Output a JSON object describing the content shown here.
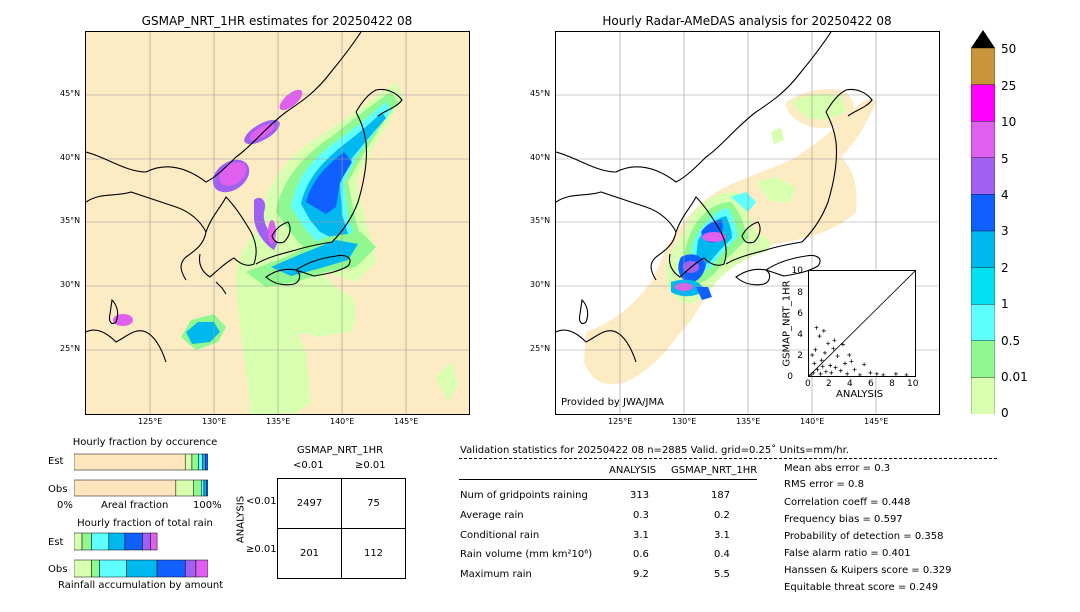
{
  "left_map": {
    "title": "GSMAP_NRT_1HR estimates for 20250422 08",
    "lat_labels": [
      "45°N",
      "40°N",
      "35°N",
      "30°N",
      "25°N"
    ],
    "lon_labels": [
      "125°E",
      "130°E",
      "135°E",
      "140°E",
      "145°E"
    ]
  },
  "right_map": {
    "title": "Hourly Radar-AMeDAS analysis for 20250422 08",
    "lat_labels": [
      "45°N",
      "40°N",
      "35°N",
      "30°N",
      "25°N"
    ],
    "lon_labels": [
      "125°E",
      "130°E",
      "135°E",
      "140°E",
      "145°E"
    ],
    "credit": "Provided by JWA/JMA"
  },
  "colorbar": {
    "labels": [
      "50",
      "25",
      "10",
      "5",
      "4",
      "3",
      "2",
      "1",
      "0.5",
      "0.01",
      "0"
    ],
    "colors": [
      "#c8953a",
      "#ff00ff",
      "#df5fef",
      "#a060f0",
      "#1060ff",
      "#00b8f0",
      "#00e0f0",
      "#60ffff",
      "#90f890",
      "#d8ffb0",
      "#fde6be"
    ]
  },
  "scatter": {
    "xlabel": "ANALYSIS",
    "ylabel": "GSMAP_NRT_1HR",
    "ticks": [
      "0",
      "2",
      "4",
      "6",
      "8",
      "10"
    ]
  },
  "fraction_occurrence": {
    "title": "Hourly fraction by occurence",
    "rows": [
      "Est",
      "Obs"
    ],
    "axis_left": "0%",
    "axis_mid": "Areal fraction",
    "axis_right": "100%"
  },
  "fraction_total": {
    "title": "Hourly fraction of total rain",
    "rows": [
      "Est",
      "Obs"
    ],
    "footer": "Rainfall accumulation by amount"
  },
  "contingency": {
    "title": "GSMAP_NRT_1HR",
    "col_headers": [
      "<0.01",
      "≥0.01"
    ],
    "row_axis": "ANALYSIS",
    "row_headers": [
      "<0.01",
      "≥0.01"
    ],
    "cells": [
      [
        "2497",
        "75"
      ],
      [
        "201",
        "112"
      ]
    ]
  },
  "validation": {
    "header": "Validation statistics for 20250422 08  n=2885 Valid. grid=0.25˚ Units=mm/hr.",
    "col_analysis": "ANALYSIS",
    "col_gsmap": "GSMAP_NRT_1HR",
    "rows": [
      {
        "label": "Num of gridpoints raining",
        "a": "313",
        "g": "187"
      },
      {
        "label": "Average rain",
        "a": "0.3",
        "g": "0.2"
      },
      {
        "label": "Conditional rain",
        "a": "3.1",
        "g": "3.1"
      },
      {
        "label": "Rain volume (mm km²10⁶)",
        "a": "0.6",
        "g": "0.4"
      },
      {
        "label": "Maximum rain",
        "a": "9.2",
        "g": "5.5"
      }
    ],
    "scores": [
      "Mean abs error =    0.3",
      "RMS error =    0.8",
      "Correlation coeff =  0.448",
      "Frequency bias =  0.597",
      "Probability of detection =  0.358",
      "False alarm ratio =  0.401",
      "Hanssen & Kuipers score =  0.329",
      "Equitable threat score =  0.249"
    ]
  },
  "chart_data": [
    {
      "type": "heatmap",
      "title": "GSMAP_NRT_1HR estimates for 20250422 08",
      "xlim": [
        120,
        150
      ],
      "ylim": [
        20,
        50
      ],
      "x_ticks": [
        "125°E",
        "130°E",
        "135°E",
        "140°E",
        "145°E"
      ],
      "y_ticks": [
        "45°N",
        "40°N",
        "35°N",
        "30°N",
        "25°N"
      ]
    },
    {
      "type": "heatmap",
      "title": "Hourly Radar-AMeDAS analysis for 20250422 08",
      "xlim": [
        120,
        150
      ],
      "ylim": [
        20,
        50
      ],
      "x_ticks": [
        "125°E",
        "130°E",
        "135°E",
        "140°E",
        "145°E"
      ],
      "y_ticks": [
        "45°N",
        "40°N",
        "35°N",
        "30°N",
        "25°N"
      ]
    },
    {
      "type": "scatter",
      "xlabel": "ANALYSIS",
      "ylabel": "GSMAP_NRT_1HR",
      "xlim": [
        0,
        10
      ],
      "ylim": [
        0,
        10
      ],
      "points": [
        [
          0.2,
          0.1
        ],
        [
          0.4,
          0.3
        ],
        [
          0.5,
          1.2
        ],
        [
          0.6,
          2.5
        ],
        [
          0.8,
          0.6
        ],
        [
          1.0,
          3.8
        ],
        [
          1.1,
          0.2
        ],
        [
          1.2,
          1.5
        ],
        [
          1.4,
          4.3
        ],
        [
          1.5,
          2.2
        ],
        [
          1.6,
          0.4
        ],
        [
          1.8,
          3.1
        ],
        [
          2.0,
          1.0
        ],
        [
          2.1,
          0.3
        ],
        [
          2.3,
          2.6
        ],
        [
          2.5,
          0.8
        ],
        [
          2.7,
          1.9
        ],
        [
          3.0,
          0.5
        ],
        [
          3.2,
          3.0
        ],
        [
          3.4,
          1.2
        ],
        [
          3.6,
          0.2
        ],
        [
          4.0,
          1.4
        ],
        [
          4.3,
          0.6
        ],
        [
          4.8,
          0.1
        ],
        [
          5.2,
          1.1
        ],
        [
          5.8,
          0.3
        ],
        [
          6.4,
          0.2
        ],
        [
          7.0,
          0.1
        ],
        [
          8.2,
          0.2
        ],
        [
          9.2,
          0.1
        ],
        [
          0.3,
          2.0
        ],
        [
          0.7,
          4.6
        ],
        [
          1.3,
          0.9
        ],
        [
          2.4,
          3.4
        ],
        [
          3.8,
          2.0
        ]
      ]
    },
    {
      "type": "table",
      "title": "GSMAP_NRT_1HR",
      "columns": [
        "<0.01",
        "≥0.01"
      ],
      "rows": [
        "<0.01",
        "≥0.01"
      ],
      "values": [
        [
          2497,
          75
        ],
        [
          201,
          112
        ]
      ]
    },
    {
      "type": "bar",
      "title": "Hourly fraction by occurence",
      "categories": [
        "Est",
        "Obs"
      ],
      "series": [
        {
          "values": [
            0.83,
            0.76
          ]
        },
        {
          "values": [
            0.05,
            0.13
          ]
        },
        {
          "values": [
            0.05,
            0.06
          ]
        },
        {
          "values": [
            0.03,
            0.02
          ]
        },
        {
          "values": [
            0.02,
            0.02
          ]
        },
        {
          "values": [
            0.02,
            0.01
          ]
        }
      ]
    },
    {
      "type": "bar",
      "title": "Hourly fraction of total rain",
      "categories": [
        "Est",
        "Obs"
      ],
      "series": [
        {
          "values": [
            0.06,
            0.13
          ]
        },
        {
          "values": [
            0.07,
            0.06
          ]
        },
        {
          "values": [
            0.13,
            0.2
          ]
        },
        {
          "values": [
            0.12,
            0.23
          ]
        },
        {
          "values": [
            0.13,
            0.21
          ]
        },
        {
          "values": [
            0.06,
            0.08
          ]
        },
        {
          "values": [
            0.05,
            0.09
          ]
        }
      ]
    }
  ]
}
